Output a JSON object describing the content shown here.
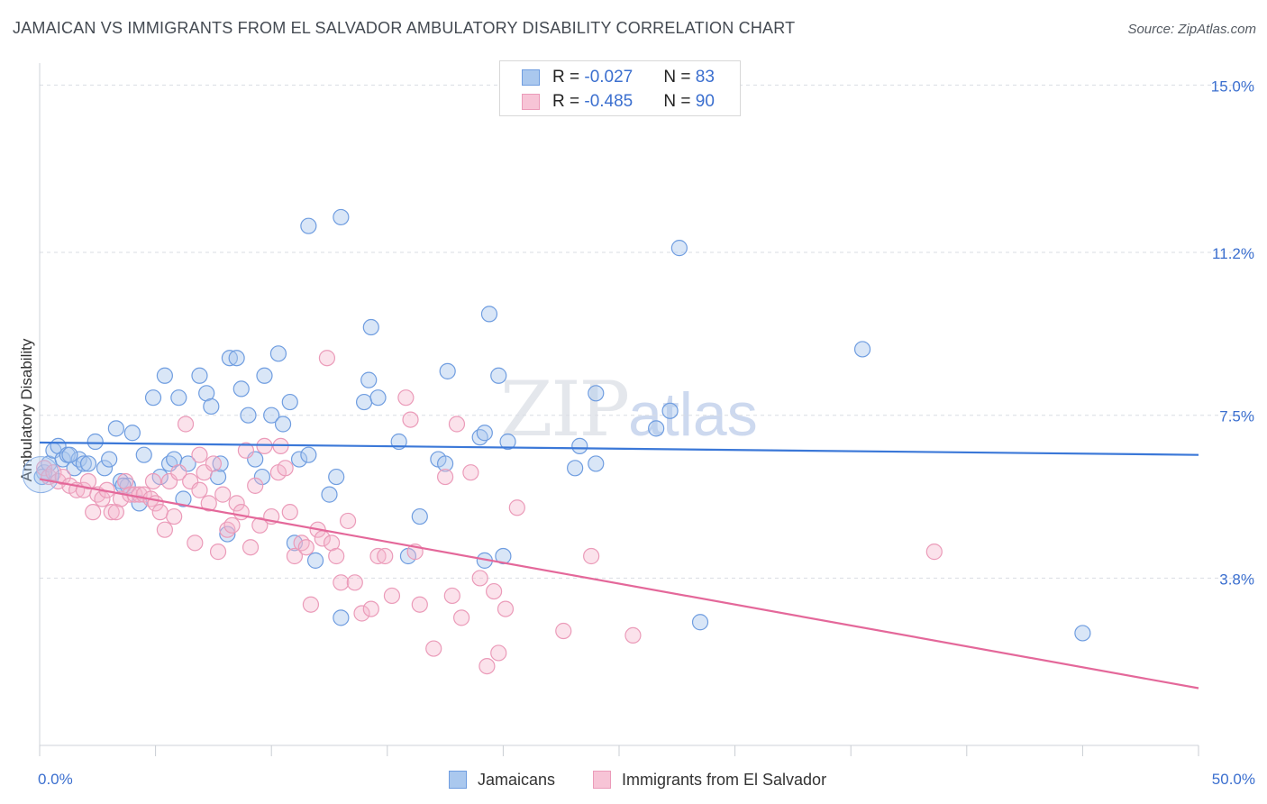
{
  "title": "JAMAICAN VS IMMIGRANTS FROM EL SALVADOR AMBULATORY DISABILITY CORRELATION CHART",
  "source": "Source: ZipAtlas.com",
  "watermark": {
    "zip": "ZIP",
    "atlas": "atlas"
  },
  "colors": {
    "blue": "#3b78d8",
    "blue_fill": "#aac8ee",
    "pink": "#e4689a",
    "pink_fill": "#f4b7cc",
    "tick_text": "#3b6fcf"
  },
  "legend": {
    "rows": [
      {
        "r_label": "R = ",
        "r_value": "-0.027",
        "n_label": "N = ",
        "n_value": "83"
      },
      {
        "r_label": "R = ",
        "r_value": "-0.485",
        "n_label": "N = ",
        "n_value": "90"
      }
    ]
  },
  "bottom_legend": [
    "Jamaicans",
    "Immigrants from El Salvador"
  ],
  "chart_data": {
    "type": "scatter",
    "xlabel": "",
    "ylabel": "Ambulatory Disability",
    "xlim": [
      0,
      50
    ],
    "ylim": [
      0,
      15.5
    ],
    "x_tick_labels": [
      {
        "value": 0,
        "label": "0.0%"
      },
      {
        "value": 50,
        "label": "50.0%"
      }
    ],
    "y_tick_labels": [
      {
        "value": 3.8,
        "label": "3.8%"
      },
      {
        "value": 7.5,
        "label": "7.5%"
      },
      {
        "value": 11.2,
        "label": "11.2%"
      },
      {
        "value": 15.0,
        "label": "15.0%"
      }
    ],
    "x_minor_ticks": [
      0,
      5,
      10,
      15,
      20,
      25,
      30,
      35,
      40,
      45,
      50
    ],
    "grid": true,
    "legend_position": "top-center",
    "series": [
      {
        "name": "Jamaicans",
        "color": "#3b78d8",
        "trend": {
          "x": [
            0,
            50
          ],
          "y": [
            6.88,
            6.6
          ]
        },
        "points": [
          [
            0.2,
            6.2
          ],
          [
            0.4,
            6.4
          ],
          [
            0.6,
            6.7
          ],
          [
            0.8,
            6.8
          ],
          [
            1.0,
            6.5
          ],
          [
            1.2,
            6.6
          ],
          [
            1.5,
            6.3
          ],
          [
            1.7,
            6.5
          ],
          [
            1.9,
            6.4
          ],
          [
            2.1,
            6.4
          ],
          [
            2.4,
            6.9
          ],
          [
            2.8,
            6.3
          ],
          [
            3.0,
            6.5
          ],
          [
            3.3,
            7.2
          ],
          [
            3.5,
            6.0
          ],
          [
            3.8,
            5.9
          ],
          [
            4.0,
            7.1
          ],
          [
            4.3,
            5.5
          ],
          [
            4.5,
            6.6
          ],
          [
            4.9,
            7.9
          ],
          [
            5.2,
            6.1
          ],
          [
            5.4,
            8.4
          ],
          [
            5.6,
            6.4
          ],
          [
            5.8,
            6.5
          ],
          [
            6.2,
            5.6
          ],
          [
            6.0,
            7.9
          ],
          [
            6.4,
            6.4
          ],
          [
            6.9,
            8.4
          ],
          [
            7.2,
            8.0
          ],
          [
            7.4,
            7.7
          ],
          [
            7.7,
            6.1
          ],
          [
            7.8,
            6.4
          ],
          [
            8.1,
            4.8
          ],
          [
            8.2,
            8.8
          ],
          [
            8.5,
            8.8
          ],
          [
            8.7,
            8.1
          ],
          [
            9.0,
            7.5
          ],
          [
            9.3,
            6.5
          ],
          [
            9.6,
            6.1
          ],
          [
            9.7,
            8.4
          ],
          [
            10.0,
            7.5
          ],
          [
            10.3,
            8.9
          ],
          [
            10.5,
            7.3
          ],
          [
            10.8,
            7.8
          ],
          [
            11.0,
            4.6
          ],
          [
            11.2,
            6.5
          ],
          [
            11.6,
            6.6
          ],
          [
            11.6,
            11.8
          ],
          [
            11.9,
            4.2
          ],
          [
            12.5,
            5.7
          ],
          [
            12.8,
            6.1
          ],
          [
            13.0,
            12.0
          ],
          [
            13.0,
            2.9
          ],
          [
            14.0,
            7.8
          ],
          [
            14.2,
            8.3
          ],
          [
            14.3,
            9.5
          ],
          [
            14.6,
            7.9
          ],
          [
            15.5,
            6.9
          ],
          [
            15.9,
            4.3
          ],
          [
            16.4,
            5.2
          ],
          [
            17.2,
            6.5
          ],
          [
            17.5,
            6.4
          ],
          [
            17.6,
            8.5
          ],
          [
            19.0,
            7.0
          ],
          [
            19.2,
            7.1
          ],
          [
            19.2,
            4.2
          ],
          [
            19.4,
            9.8
          ],
          [
            19.8,
            8.4
          ],
          [
            20.0,
            4.3
          ],
          [
            20.2,
            6.9
          ],
          [
            23.1,
            6.3
          ],
          [
            23.3,
            6.8
          ],
          [
            24.0,
            6.4
          ],
          [
            24.0,
            8.0
          ],
          [
            26.6,
            7.2
          ],
          [
            27.2,
            7.6
          ],
          [
            27.6,
            11.3
          ],
          [
            28.5,
            2.8
          ],
          [
            35.5,
            9.0
          ],
          [
            45.0,
            2.55
          ],
          [
            0.1,
            6.1
          ],
          [
            1.3,
            6.6
          ],
          [
            3.6,
            5.9
          ]
        ]
      },
      {
        "name": "Immigrants from El Salvador",
        "color": "#e4689a",
        "trend": {
          "x": [
            0,
            50
          ],
          "y": [
            6.05,
            1.3
          ]
        },
        "points": [
          [
            0.2,
            6.3
          ],
          [
            0.4,
            6.1
          ],
          [
            0.6,
            6.2
          ],
          [
            0.8,
            6.0
          ],
          [
            1.0,
            6.1
          ],
          [
            1.3,
            5.9
          ],
          [
            1.6,
            5.8
          ],
          [
            1.9,
            5.8
          ],
          [
            2.1,
            6.0
          ],
          [
            2.3,
            5.3
          ],
          [
            2.5,
            5.7
          ],
          [
            2.7,
            5.6
          ],
          [
            2.9,
            5.8
          ],
          [
            3.1,
            5.3
          ],
          [
            3.3,
            5.3
          ],
          [
            3.5,
            5.6
          ],
          [
            3.7,
            6.0
          ],
          [
            3.9,
            5.7
          ],
          [
            4.1,
            5.7
          ],
          [
            4.3,
            5.7
          ],
          [
            4.5,
            5.7
          ],
          [
            4.8,
            5.6
          ],
          [
            5.0,
            5.5
          ],
          [
            5.2,
            5.3
          ],
          [
            5.4,
            4.9
          ],
          [
            5.6,
            6.0
          ],
          [
            5.8,
            5.2
          ],
          [
            6.0,
            6.2
          ],
          [
            6.3,
            7.3
          ],
          [
            6.5,
            6.0
          ],
          [
            6.7,
            4.6
          ],
          [
            6.9,
            5.8
          ],
          [
            7.1,
            6.2
          ],
          [
            7.3,
            5.5
          ],
          [
            7.5,
            6.4
          ],
          [
            7.7,
            4.4
          ],
          [
            7.9,
            5.7
          ],
          [
            8.1,
            4.9
          ],
          [
            8.3,
            5.0
          ],
          [
            8.5,
            5.5
          ],
          [
            8.7,
            5.3
          ],
          [
            8.9,
            6.7
          ],
          [
            9.1,
            4.5
          ],
          [
            9.3,
            5.9
          ],
          [
            9.5,
            5.0
          ],
          [
            9.7,
            6.8
          ],
          [
            10.0,
            5.2
          ],
          [
            10.3,
            6.2
          ],
          [
            10.6,
            6.3
          ],
          [
            10.8,
            5.3
          ],
          [
            11.0,
            4.3
          ],
          [
            11.3,
            4.6
          ],
          [
            11.5,
            4.5
          ],
          [
            11.7,
            3.2
          ],
          [
            12.0,
            4.9
          ],
          [
            12.2,
            4.7
          ],
          [
            12.4,
            8.8
          ],
          [
            12.6,
            4.6
          ],
          [
            12.8,
            4.3
          ],
          [
            13.0,
            3.7
          ],
          [
            13.3,
            5.1
          ],
          [
            13.6,
            3.7
          ],
          [
            13.9,
            3.0
          ],
          [
            14.3,
            3.1
          ],
          [
            14.6,
            4.3
          ],
          [
            14.9,
            4.3
          ],
          [
            15.2,
            3.4
          ],
          [
            15.8,
            7.9
          ],
          [
            16.0,
            7.4
          ],
          [
            16.2,
            4.4
          ],
          [
            16.4,
            3.2
          ],
          [
            17.0,
            2.2
          ],
          [
            17.5,
            6.1
          ],
          [
            17.8,
            3.4
          ],
          [
            18.0,
            7.3
          ],
          [
            18.2,
            2.9
          ],
          [
            18.6,
            6.2
          ],
          [
            19.0,
            3.8
          ],
          [
            19.3,
            1.8
          ],
          [
            19.6,
            3.5
          ],
          [
            19.8,
            2.1
          ],
          [
            20.1,
            3.1
          ],
          [
            20.6,
            5.4
          ],
          [
            22.6,
            2.6
          ],
          [
            23.8,
            4.3
          ],
          [
            25.6,
            2.5
          ],
          [
            38.6,
            4.4
          ],
          [
            10.4,
            6.8
          ],
          [
            4.9,
            6.0
          ],
          [
            6.9,
            6.6
          ]
        ]
      }
    ]
  }
}
